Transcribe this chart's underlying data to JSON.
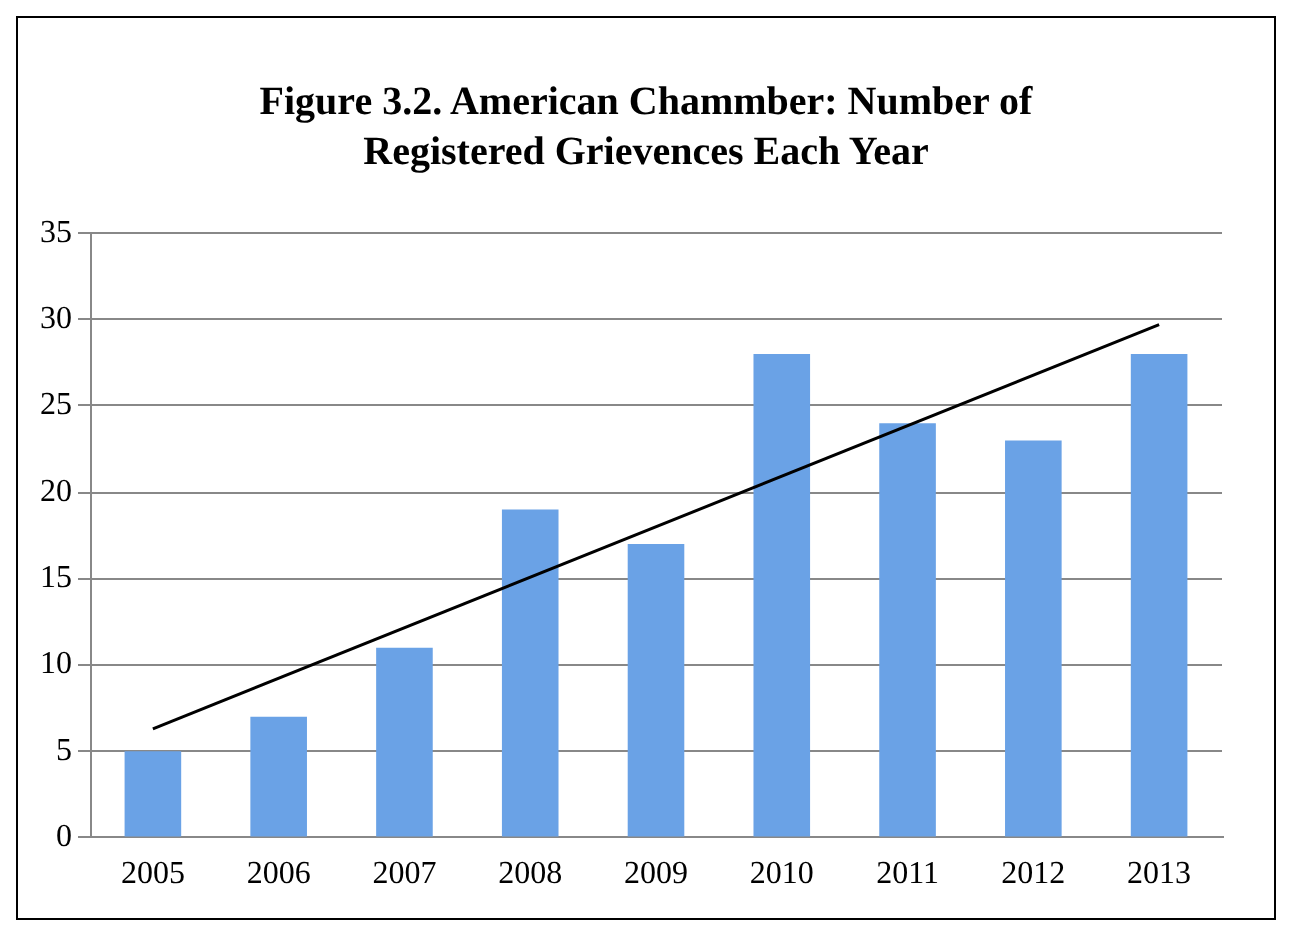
{
  "chart_data": {
    "type": "bar",
    "title": "Figure 3.2. American Chammber: Number of Registered Grievences Each Year",
    "categories": [
      "2005",
      "2006",
      "2007",
      "2008",
      "2009",
      "2010",
      "2011",
      "2012",
      "2013"
    ],
    "series": [
      {
        "color": "#6aa2e6",
        "values": [
          5,
          7,
          11,
          19,
          17,
          28,
          24,
          23,
          28
        ]
      },
      {
        "type": "line",
        "color": "#000000",
        "values": [
          6.3,
          null,
          null,
          null,
          null,
          null,
          null,
          null,
          29.7
        ],
        "marker": "none"
      }
    ],
    "ylim": [
      0,
      35
    ],
    "yticks": [
      0,
      5,
      10,
      15,
      20,
      25,
      30,
      35
    ],
    "grid": "y"
  }
}
